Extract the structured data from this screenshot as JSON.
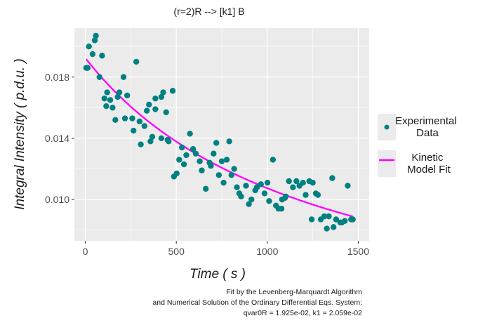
{
  "chart_data": {
    "type": "scatter",
    "title": "(r=2)R --> [k1] B",
    "xlabel": "Time ( s )",
    "ylabel": "Integral Intensity ( p.d.u. )",
    "xlim": [
      -60,
      1560
    ],
    "ylim": [
      0.0073,
      0.0212
    ],
    "x_ticks": [
      0,
      500,
      1000,
      1500
    ],
    "x_tick_labels": [
      "0",
      "500",
      "1000",
      "1500"
    ],
    "y_ticks": [
      0.01,
      0.014,
      0.018
    ],
    "y_tick_labels": [
      "0.010",
      "0.014",
      "0.018"
    ],
    "grid": true,
    "legend_position": "right",
    "colors": {
      "panel": "#ebebeb",
      "grid": "#ffffff",
      "points": "#008080",
      "line": "#ff00ff"
    },
    "series": [
      {
        "name": "Experimental Data",
        "kind": "points",
        "x": [
          5,
          13,
          20,
          40,
          52,
          58,
          78,
          92,
          105,
          115,
          120,
          137,
          150,
          165,
          178,
          187,
          210,
          218,
          230,
          258,
          265,
          280,
          298,
          305,
          325,
          338,
          350,
          358,
          368,
          385,
          385,
          418,
          418,
          428,
          444,
          452,
          458,
          480,
          487,
          502,
          516,
          531,
          542,
          555,
          575,
          592,
          607,
          629,
          640,
          662,
          683,
          690,
          705,
          720,
          734,
          750,
          760,
          777,
          791,
          803,
          818,
          833,
          846,
          856,
          883,
          899,
          913,
          934,
          943,
          965,
          985,
          1001,
          1010,
          1031,
          1048,
          1062,
          1078,
          1081,
          1097,
          1101,
          1119,
          1141,
          1160,
          1177,
          1196,
          1211,
          1231,
          1244,
          1250,
          1267,
          1278,
          1294,
          1313,
          1327,
          1338,
          1357,
          1364,
          1378,
          1401,
          1410,
          1426,
          1442,
          1461,
          1470
        ],
        "y": [
          0.0186,
          0.0186,
          0.02,
          0.0195,
          0.0204,
          0.0207,
          0.018,
          0.0194,
          0.0166,
          0.0161,
          0.017,
          0.0165,
          0.016,
          0.0152,
          0.0167,
          0.017,
          0.018,
          0.0153,
          0.0168,
          0.0153,
          0.0145,
          0.019,
          0.0151,
          0.0136,
          0.0148,
          0.0158,
          0.0162,
          0.0138,
          0.0141,
          0.0166,
          0.0159,
          0.0167,
          0.014,
          0.017,
          0.0157,
          0.0139,
          0.0138,
          0.0171,
          0.0115,
          0.0117,
          0.0126,
          0.0134,
          0.0123,
          0.0129,
          0.0143,
          0.0133,
          0.013,
          0.0125,
          0.0119,
          0.0107,
          0.0124,
          0.0122,
          0.013,
          0.0137,
          0.0116,
          0.0125,
          0.0111,
          0.0126,
          0.0138,
          0.0116,
          0.012,
          0.0108,
          0.0104,
          0.0102,
          0.0109,
          0.0097,
          0.01,
          0.0106,
          0.0108,
          0.011,
          0.0104,
          0.0111,
          0.0099,
          0.0126,
          0.0096,
          0.0094,
          0.0094,
          0.01,
          0.0101,
          0.0102,
          0.0112,
          0.0108,
          0.0112,
          0.0109,
          0.0111,
          0.0103,
          0.0112,
          0.0087,
          0.0111,
          0.0104,
          0.0103,
          0.0087,
          0.0089,
          0.0081,
          0.0089,
          0.0114,
          0.0082,
          0.0087,
          0.0085,
          0.0085,
          0.0086,
          0.0109,
          0.0087,
          0.0087
        ]
      },
      {
        "name": "Kinetic Model Fit",
        "kind": "line",
        "model": "1/C = 1/qvar0R + 2*k1*t",
        "qvar0R": 0.01925,
        "k1": 0.02059,
        "t_range": [
          5,
          1470
        ]
      }
    ],
    "legend": [
      "Experimental\nData",
      "Kinetic\nModel Fit"
    ],
    "caption": [
      "Fit by the Levenberg-Marquardt Algorithm",
      "and Numerical Solution of the Ordinary Differential Eqs. System:",
      "qvar0R = 1.925e-02, k1 = 2.059e-02"
    ]
  }
}
